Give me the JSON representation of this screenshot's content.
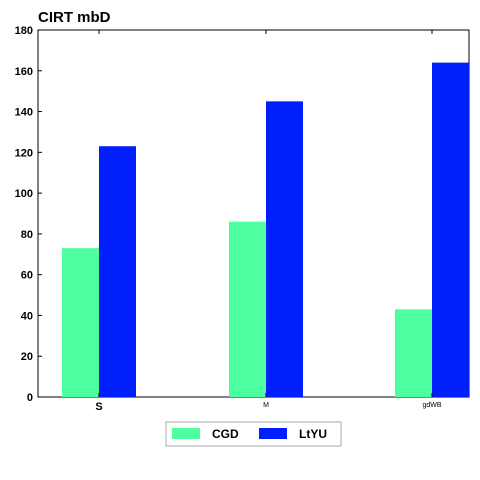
{
  "chart_data": {
    "type": "bar",
    "title": "CIRT mbD",
    "xlabel": "",
    "ylabel": "",
    "categories": [
      "S",
      "M",
      "gdWB"
    ],
    "category_label_sizes": [
      "large",
      "small",
      "small"
    ],
    "series": [
      {
        "name": "CGD",
        "values": [
          73,
          86,
          43
        ],
        "color": "#4dff9f"
      },
      {
        "name": "LtYU",
        "values": [
          123,
          145,
          164
        ],
        "color": "#001ffb"
      }
    ],
    "ylim": [
      0,
      180
    ],
    "yticks": [
      0,
      20,
      40,
      60,
      80,
      100,
      120,
      140,
      160,
      180
    ],
    "grid": false,
    "legend": {
      "placement": "bottom-center"
    }
  }
}
